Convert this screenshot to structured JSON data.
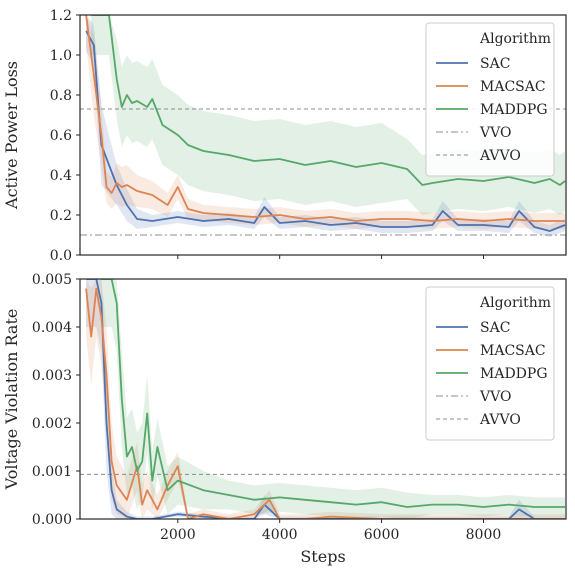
{
  "chart_data": [
    {
      "type": "line",
      "ylabel": "Active Power Loss",
      "xlabel": "",
      "xlim": [
        80,
        9620
      ],
      "ylim": [
        0,
        1.2
      ],
      "xticks": [
        2000,
        4000,
        6000,
        8000
      ],
      "xtick_labels_visible": false,
      "yticks": [
        0,
        0.2,
        0.4,
        0.6,
        0.8,
        1.0,
        1.2
      ],
      "ytick_labels": [
        "0.0",
        "0.2",
        "0.4",
        "0.6",
        "0.8",
        "1.0",
        "1.2"
      ],
      "legend": {
        "title": "Algorithm",
        "position": "upper right"
      },
      "series": [
        {
          "name": "SAC",
          "color": "#4c72b0",
          "style": "solid",
          "x": [
            200,
            350,
            500,
            650,
            800,
            1000,
            1200,
            1500,
            2000,
            2500,
            3000,
            3500,
            3700,
            4000,
            4500,
            5000,
            5500,
            6000,
            6500,
            7000,
            7200,
            7500,
            8000,
            8500,
            8700,
            9000,
            9300,
            9600
          ],
          "y": [
            1.12,
            1.05,
            0.55,
            0.45,
            0.35,
            0.25,
            0.18,
            0.17,
            0.19,
            0.17,
            0.18,
            0.16,
            0.24,
            0.16,
            0.17,
            0.15,
            0.16,
            0.14,
            0.14,
            0.15,
            0.22,
            0.15,
            0.15,
            0.14,
            0.22,
            0.14,
            0.12,
            0.15
          ],
          "band": [
            0.1,
            0.1,
            0.2,
            0.15,
            0.1,
            0.08,
            0.05,
            0.03,
            0.03,
            0.03,
            0.03,
            0.03,
            0.05,
            0.03,
            0.03,
            0.03,
            0.03,
            0.03,
            0.03,
            0.03,
            0.05,
            0.03,
            0.03,
            0.03,
            0.05,
            0.03,
            0.03,
            0.03
          ]
        },
        {
          "name": "MACSAC",
          "color": "#dd8452",
          "style": "solid",
          "x": [
            200,
            350,
            500,
            600,
            700,
            800,
            900,
            1000,
            1200,
            1500,
            1800,
            2000,
            2200,
            2500,
            3000,
            3500,
            4000,
            4500,
            5000,
            5500,
            6000,
            6500,
            7000,
            7500,
            8000,
            8500,
            9000,
            9600
          ],
          "y": [
            1.2,
            0.9,
            0.6,
            0.34,
            0.31,
            0.36,
            0.34,
            0.35,
            0.32,
            0.3,
            0.25,
            0.34,
            0.23,
            0.21,
            0.2,
            0.19,
            0.2,
            0.18,
            0.19,
            0.17,
            0.18,
            0.18,
            0.17,
            0.18,
            0.17,
            0.18,
            0.17,
            0.17
          ],
          "band": [
            0.15,
            0.2,
            0.15,
            0.08,
            0.08,
            0.1,
            0.1,
            0.1,
            0.08,
            0.07,
            0.06,
            0.06,
            0.05,
            0.04,
            0.04,
            0.04,
            0.04,
            0.04,
            0.04,
            0.04,
            0.04,
            0.04,
            0.04,
            0.04,
            0.04,
            0.04,
            0.04,
            0.04
          ]
        },
        {
          "name": "MADDPG",
          "color": "#55a868",
          "style": "solid",
          "x": [
            300,
            500,
            650,
            800,
            900,
            1000,
            1100,
            1200,
            1400,
            1500,
            1700,
            2000,
            2200,
            2500,
            3000,
            3500,
            4000,
            4500,
            5000,
            5500,
            6000,
            6500,
            6800,
            7000,
            7500,
            8000,
            8500,
            9000,
            9300,
            9500,
            9600
          ],
          "y": [
            1.2,
            1.2,
            1.2,
            0.88,
            0.74,
            0.8,
            0.76,
            0.77,
            0.74,
            0.78,
            0.65,
            0.6,
            0.55,
            0.52,
            0.5,
            0.47,
            0.48,
            0.45,
            0.47,
            0.44,
            0.46,
            0.43,
            0.35,
            0.36,
            0.38,
            0.37,
            0.39,
            0.36,
            0.38,
            0.35,
            0.37
          ],
          "band": [
            0.2,
            0.2,
            0.2,
            0.2,
            0.2,
            0.2,
            0.2,
            0.2,
            0.2,
            0.2,
            0.2,
            0.2,
            0.2,
            0.2,
            0.2,
            0.2,
            0.2,
            0.2,
            0.2,
            0.2,
            0.2,
            0.15,
            0.15,
            0.15,
            0.15,
            0.15,
            0.15,
            0.15,
            0.15,
            0.15,
            0.15
          ]
        },
        {
          "name": "VVO",
          "color": "#8c8c8c",
          "style": "dashdot",
          "y_const": 0.1
        },
        {
          "name": "AVVO",
          "color": "#8c8c8c",
          "style": "dashed",
          "y_const": 0.73
        }
      ]
    },
    {
      "type": "line",
      "ylabel": "Voltage Violation Rate",
      "xlabel": "Steps",
      "xlim": [
        80,
        9620
      ],
      "ylim": [
        0,
        0.005
      ],
      "xticks": [
        2000,
        4000,
        6000,
        8000
      ],
      "xtick_labels": [
        "2000",
        "4000",
        "6000",
        "8000"
      ],
      "yticks": [
        0,
        0.001,
        0.002,
        0.003,
        0.004,
        0.005
      ],
      "ytick_labels": [
        "0.000",
        "0.001",
        "0.002",
        "0.003",
        "0.004",
        "0.005"
      ],
      "legend": {
        "title": "Algorithm",
        "position": "upper right"
      },
      "series": [
        {
          "name": "SAC",
          "color": "#4c72b0",
          "style": "solid",
          "x": [
            200,
            400,
            500,
            600,
            700,
            800,
            1000,
            1200,
            1500,
            2000,
            2500,
            3000,
            3500,
            3700,
            4000,
            4500,
            5000,
            5500,
            6000,
            6500,
            7000,
            7500,
            8000,
            8500,
            8700,
            9000,
            9600
          ],
          "y": [
            0.005,
            0.005,
            0.0045,
            0.002,
            0.0006,
            0.0002,
            5e-05,
            0.0,
            0.0,
            0.0001,
            5e-05,
            0.0,
            0.0,
            0.0003,
            0.0,
            0.0,
            0.0,
            0.0,
            0.0,
            0.0,
            0.0,
            0.0,
            0.0,
            0.0,
            0.0002,
            0.0,
            0.0
          ],
          "band": [
            0.001,
            0.001,
            0.001,
            0.001,
            0.0005,
            0.0002,
            0.0001,
            5e-05,
            5e-05,
            5e-05,
            5e-05,
            5e-05,
            5e-05,
            0.0002,
            5e-05,
            5e-05,
            5e-05,
            5e-05,
            5e-05,
            5e-05,
            5e-05,
            5e-05,
            5e-05,
            5e-05,
            0.0002,
            5e-05,
            5e-05
          ]
        },
        {
          "name": "MACSAC",
          "color": "#dd8452",
          "style": "solid",
          "x": [
            200,
            300,
            400,
            500,
            600,
            700,
            800,
            1000,
            1200,
            1300,
            1400,
            1600,
            1800,
            2000,
            2200,
            2500,
            3000,
            3500,
            3800,
            4000,
            4500,
            5000,
            6000,
            7000,
            8000,
            9000,
            9600
          ],
          "y": [
            0.0048,
            0.0038,
            0.0048,
            0.0042,
            0.003,
            0.0012,
            0.0007,
            0.0004,
            0.0011,
            0.0003,
            0.0006,
            0.0002,
            0.0007,
            0.0011,
            0.0,
            0.0001,
            0.0,
            0.0001,
            0.0004,
            0.0,
            0.0,
            5e-05,
            0.0,
            0.0,
            0.0,
            0.0,
            0.0
          ],
          "band": [
            0.001,
            0.001,
            0.001,
            0.001,
            0.001,
            0.0008,
            0.0006,
            0.0005,
            0.0005,
            0.0004,
            0.0004,
            0.0003,
            0.0003,
            0.0003,
            0.0001,
            0.0001,
            0.0001,
            0.0001,
            0.0002,
            0.0001,
            0.0001,
            0.0001,
            0.0001,
            0.0001,
            0.0001,
            0.0001,
            0.0001
          ]
        },
        {
          "name": "MADDPG",
          "color": "#55a868",
          "style": "solid",
          "x": [
            500,
            700,
            800,
            900,
            1000,
            1100,
            1200,
            1300,
            1400,
            1500,
            1600,
            1800,
            2000,
            2500,
            3000,
            3500,
            4000,
            4500,
            5000,
            5500,
            6000,
            6500,
            7000,
            7500,
            8000,
            8500,
            9000,
            9600
          ],
          "y": [
            0.005,
            0.005,
            0.0045,
            0.0025,
            0.0013,
            0.0015,
            0.001,
            0.0012,
            0.0022,
            0.0008,
            0.0015,
            0.0006,
            0.0008,
            0.0006,
            0.0005,
            0.0004,
            0.00045,
            0.0004,
            0.00035,
            0.0003,
            0.00035,
            0.00025,
            0.0003,
            0.0003,
            0.00025,
            0.0003,
            0.00025,
            0.00025
          ],
          "band": [
            0.001,
            0.001,
            0.001,
            0.001,
            0.0008,
            0.0008,
            0.0008,
            0.0008,
            0.0008,
            0.0006,
            0.0006,
            0.0005,
            0.0005,
            0.0004,
            0.0003,
            0.0003,
            0.0003,
            0.0003,
            0.0003,
            0.0003,
            0.0003,
            0.0003,
            0.0002,
            0.0002,
            0.0002,
            0.0002,
            0.0002,
            0.0002
          ]
        },
        {
          "name": "VVO",
          "color": "#8c8c8c",
          "style": "dashdot",
          "y_const": 0.0
        },
        {
          "name": "AVVO",
          "color": "#8c8c8c",
          "style": "dashed",
          "y_const": 0.00093
        }
      ]
    }
  ]
}
